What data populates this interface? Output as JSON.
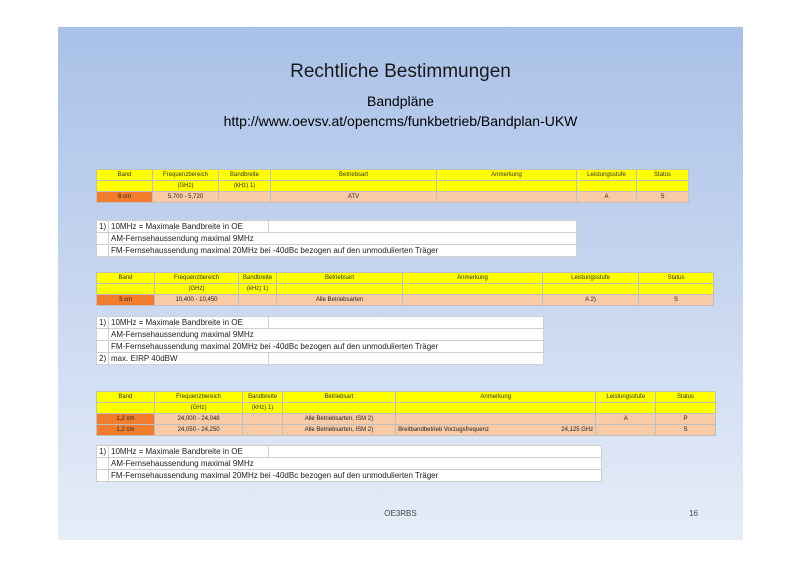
{
  "title": "Rechtliche Bestimmungen",
  "subtitle": "Bandpläne",
  "url": "http://www.oevsv.at/opencms/funkbetrieb/Bandplan-UKW",
  "headers": {
    "band": "Band",
    "freq": "Frequenzbereich",
    "freq_unit": "(GHz)",
    "bw": "Bandbreite",
    "bw_unit": "(kHz) 1)",
    "mode": "Betriebsart",
    "remark": "Anmerkung",
    "power": "Leistungsstufe",
    "status": "Status"
  },
  "table1": {
    "rows": [
      {
        "band": "6 cm",
        "freq": "5,700 - 5,720",
        "bw": "",
        "mode": "ATV",
        "remark": "",
        "remark2": "",
        "power": "A",
        "status": "S"
      }
    ]
  },
  "table2": {
    "rows": [
      {
        "band": "3 cm",
        "freq": "10,400 - 10,450",
        "bw": "",
        "mode": "Alle Betriebsarten",
        "remark": "",
        "remark2": "",
        "power": "A 2)",
        "status": "S"
      }
    ]
  },
  "table3": {
    "rows": [
      {
        "band": "1,2 cm",
        "freq": "24,000 - 24,048",
        "bw": "",
        "mode": "Alle Betriebsarten, ISM 2)",
        "remark": "",
        "remark2": "",
        "power": "A",
        "status": "P"
      },
      {
        "band": "1,2 cm",
        "freq": "24,050 - 24,250",
        "bw": "",
        "mode": "Alle Betriebsarten, ISM 2)",
        "remark": "Breitbandbetrieb  Vorzugsfrequenz",
        "remark2": "24,125 GHz",
        "power": "",
        "status": "S"
      }
    ]
  },
  "notes": {
    "n1_num": "1)",
    "n1": "10MHz = Maximale Bandbreite in OE",
    "n_am": "AM-Fernsehaussendung maximal 9MHz",
    "n_fm": "FM-Fernsehaussendung maximal 20MHz bei -40dBc  bezogen auf den unmodulierten Träger",
    "n2_num": "2)",
    "n2": "max. EIRP 40dBW"
  },
  "footer": "OE3RBS",
  "page_number": "16",
  "colors": {
    "header": "#ffff00",
    "data": "#f8caa6",
    "band": "#f27c2e"
  }
}
